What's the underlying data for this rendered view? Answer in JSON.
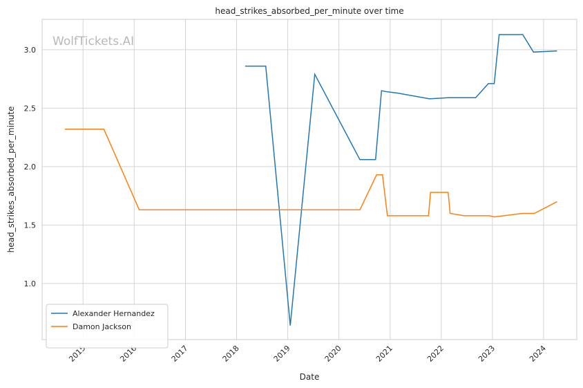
{
  "chart_data": {
    "type": "line",
    "title": "head_strikes_absorbed_per_minute over time",
    "xlabel": "Date",
    "ylabel": "head_strikes_absorbed_per_minute",
    "watermark": "WolfTickets.AI",
    "x_ticks": [
      "2015",
      "2016",
      "2017",
      "2018",
      "2019",
      "2020",
      "2021",
      "2022",
      "2023",
      "2024"
    ],
    "y_ticks": [
      "1.0",
      "1.5",
      "2.0",
      "2.5",
      "3.0"
    ],
    "xlim": [
      "2014-03-15",
      "2024-08-25"
    ],
    "ylim": [
      0.52,
      3.26
    ],
    "grid": true,
    "legend_position": "lower-left",
    "series": [
      {
        "name": "Alexander Hernandez",
        "color": "#1f77b4",
        "points": [
          [
            "2018-03-03",
            2.86
          ],
          [
            "2018-07-28",
            2.86
          ],
          [
            "2019-01-19",
            0.64
          ],
          [
            "2019-07-13",
            2.79
          ],
          [
            "2020-05-30",
            2.06
          ],
          [
            "2020-09-19",
            2.06
          ],
          [
            "2020-10-31",
            2.65
          ],
          [
            "2020-12-12",
            2.64
          ],
          [
            "2021-02-20",
            2.63
          ],
          [
            "2021-10-09",
            2.58
          ],
          [
            "2022-02-19",
            2.59
          ],
          [
            "2022-09-03",
            2.59
          ],
          [
            "2022-12-03",
            2.71
          ],
          [
            "2023-01-14",
            2.71
          ],
          [
            "2023-02-18",
            3.13
          ],
          [
            "2023-08-05",
            3.13
          ],
          [
            "2023-10-21",
            2.98
          ],
          [
            "2024-04-06",
            2.99
          ]
        ]
      },
      {
        "name": "Damon Jackson",
        "color": "#ff7f0e",
        "points": [
          [
            "2014-08-23",
            2.32
          ],
          [
            "2015-05-30",
            2.32
          ],
          [
            "2016-02-06",
            1.63
          ],
          [
            "2020-05-30",
            1.63
          ],
          [
            "2020-09-26",
            1.93
          ],
          [
            "2020-11-07",
            1.93
          ],
          [
            "2020-12-12",
            1.58
          ],
          [
            "2021-10-02",
            1.58
          ],
          [
            "2021-10-16",
            1.78
          ],
          [
            "2022-02-19",
            1.78
          ],
          [
            "2022-03-05",
            1.6
          ],
          [
            "2022-06-11",
            1.58
          ],
          [
            "2022-12-10",
            1.58
          ],
          [
            "2023-01-14",
            1.57
          ],
          [
            "2023-08-05",
            1.6
          ],
          [
            "2023-10-28",
            1.6
          ],
          [
            "2024-04-06",
            1.7
          ]
        ]
      }
    ]
  }
}
